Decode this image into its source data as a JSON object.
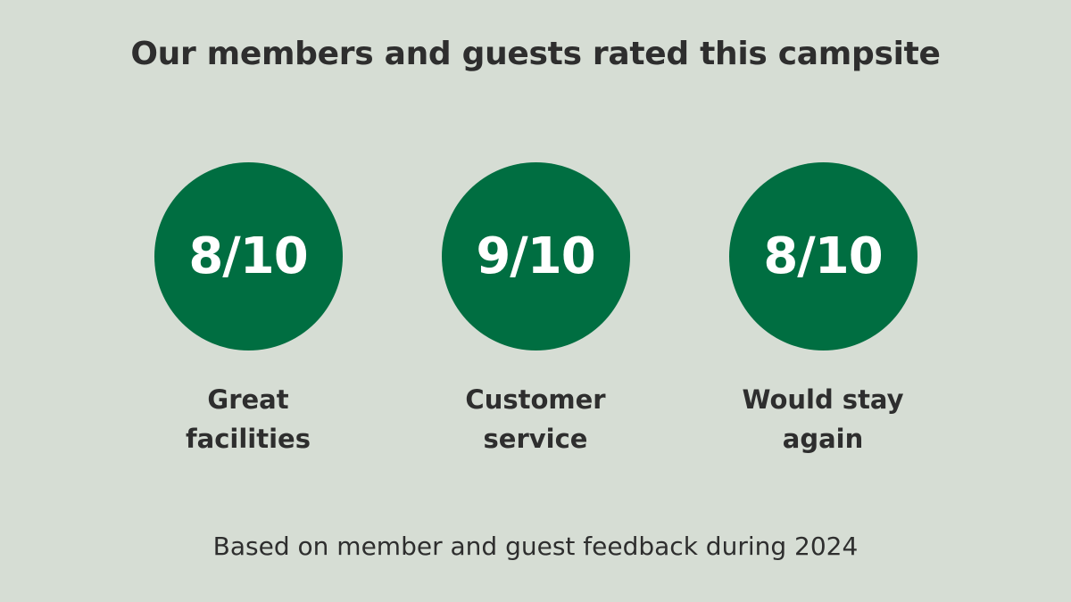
{
  "title": "Our members and guests rated this campsite",
  "ratings": [
    {
      "score": "8/10",
      "label": "Great facilities"
    },
    {
      "score": "9/10",
      "label": "Customer service"
    },
    {
      "score": "8/10",
      "label": "Would stay again"
    }
  ],
  "footnote": "Based on member and guest feedback during 2024",
  "colors": {
    "background": "#d6ddd4",
    "circle": "#006e41",
    "score_text": "#ffffff",
    "text": "#2e2e2e"
  }
}
